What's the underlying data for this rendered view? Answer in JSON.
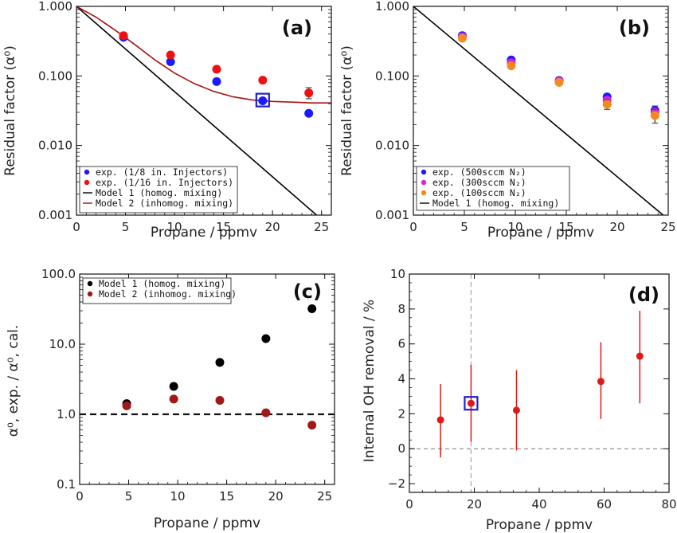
{
  "chart_data": [
    {
      "panel": "(a)",
      "type": "scatter",
      "xlabel": "Propane / ppmv",
      "ylabel": "Residual factor (α⁰)",
      "xlim": [
        0,
        26
      ],
      "ylim": [
        0.001,
        1.0
      ],
      "ylog": true,
      "xticks": [
        "0",
        "5",
        "10",
        "15",
        "20",
        "25"
      ],
      "yticks": [
        "0.001",
        "0.010",
        "0.100",
        "1.000"
      ],
      "series": [
        {
          "name": "exp. (1/8 in. Injectors)",
          "color": "#1a1aff",
          "kind": "points",
          "points": [
            [
              4.8,
              0.36
            ],
            [
              9.6,
              0.16
            ],
            [
              14.3,
              0.083
            ],
            [
              19.0,
              0.044
            ],
            [
              23.7,
              0.029
            ]
          ]
        },
        {
          "name": "exp. (1/16 in. Injectors)",
          "color": "#ee1111",
          "kind": "points",
          "points": [
            [
              4.8,
              0.38
            ],
            [
              9.6,
              0.2
            ],
            [
              14.3,
              0.125
            ],
            [
              19.0,
              0.087
            ],
            [
              23.7,
              0.057
            ]
          ],
          "errors": [
            [
              23.7,
              0.047,
              0.068
            ]
          ]
        },
        {
          "name": "Model 1 (homog. mixing)",
          "color": "#000000",
          "kind": "line",
          "points": [
            [
              0,
              1.0
            ],
            [
              24.5,
              0.001
            ]
          ]
        },
        {
          "name": "Model 2 (inhomog. mixing)",
          "color": "#aa1111",
          "kind": "line",
          "points": [
            [
              0,
              1.0
            ],
            [
              2,
              0.7
            ],
            [
              4,
              0.45
            ],
            [
              6,
              0.28
            ],
            [
              8,
              0.17
            ],
            [
              10,
              0.11
            ],
            [
              12,
              0.078
            ],
            [
              14,
              0.06
            ],
            [
              16,
              0.05
            ],
            [
              18,
              0.045
            ],
            [
              20,
              0.043
            ],
            [
              22,
              0.042
            ],
            [
              24,
              0.041
            ],
            [
              26,
              0.041
            ]
          ]
        }
      ],
      "highlight": [
        19.0,
        0.045
      ]
    },
    {
      "panel": "(b)",
      "type": "scatter",
      "xlabel": "Propane / ppmv",
      "ylabel": "Residual factor (α⁰)",
      "xlim": [
        0,
        25
      ],
      "ylim": [
        0.001,
        1.0
      ],
      "ylog": true,
      "xticks": [
        "0",
        "5",
        "10",
        "15",
        "20",
        "25"
      ],
      "yticks": [
        "0.001",
        "0.010",
        "0.100",
        "1.000"
      ],
      "series": [
        {
          "name": "exp. (500sccm N₂)",
          "color": "#1a1aff",
          "kind": "points",
          "points": [
            [
              4.8,
              0.38
            ],
            [
              9.6,
              0.17
            ],
            [
              14.3,
              0.086
            ],
            [
              19.0,
              0.05
            ],
            [
              23.7,
              0.032
            ]
          ],
          "errors": [
            [
              23.7,
              0.027,
              0.037
            ]
          ]
        },
        {
          "name": "exp. (300sccm N₂)",
          "color": "#dd22dd",
          "kind": "points",
          "points": [
            [
              4.8,
              0.365
            ],
            [
              9.6,
              0.155
            ],
            [
              14.3,
              0.084
            ],
            [
              19.0,
              0.045
            ],
            [
              23.7,
              0.03
            ]
          ]
        },
        {
          "name": "exp. (100sccm N₂)",
          "color": "#f58a1f",
          "kind": "points",
          "points": [
            [
              4.8,
              0.35
            ],
            [
              9.6,
              0.14
            ],
            [
              14.3,
              0.081
            ],
            [
              19.0,
              0.039
            ],
            [
              23.7,
              0.027
            ]
          ],
          "errors": [
            [
              19.0,
              0.033,
              0.046
            ],
            [
              23.7,
              0.021,
              0.033
            ]
          ]
        },
        {
          "name": "Model 1 (homog. mixing)",
          "color": "#000000",
          "kind": "line",
          "points": [
            [
              0,
              1.0
            ],
            [
              24.5,
              0.001
            ]
          ]
        }
      ]
    },
    {
      "panel": "(c)",
      "type": "scatter",
      "xlabel": "Propane / ppmv",
      "ylabel": "α⁰, exp. / α⁰, cal.",
      "xlim": [
        0,
        26
      ],
      "ylim": [
        0.1,
        100
      ],
      "ylog": true,
      "xticks": [
        "0",
        "5",
        "10",
        "15",
        "20",
        "25"
      ],
      "yticks": [
        "0.1",
        "1.0",
        "10.0",
        "100.0"
      ],
      "reference_line": 1.0,
      "series": [
        {
          "name": "Model 1 (homog. mixing)",
          "color": "#000000",
          "kind": "points",
          "points": [
            [
              4.8,
              1.42
            ],
            [
              9.6,
              2.5
            ],
            [
              14.3,
              5.5
            ],
            [
              19.0,
              12.0
            ],
            [
              23.7,
              32.0
            ]
          ]
        },
        {
          "name": "Model 2 (inhomog. mixing)",
          "color": "#a01818",
          "kind": "points",
          "points": [
            [
              4.8,
              1.32
            ],
            [
              9.6,
              1.65
            ],
            [
              14.3,
              1.58
            ],
            [
              19.0,
              1.05
            ],
            [
              23.7,
              0.7
            ]
          ]
        }
      ]
    },
    {
      "panel": "(d)",
      "type": "scatter",
      "xlabel": "Propane / ppmv",
      "ylabel": "Internal OH removal / %",
      "xlim": [
        0,
        80
      ],
      "ylim": [
        -2.5,
        10
      ],
      "ylog": false,
      "xticks": [
        "0",
        "20",
        "40",
        "60",
        "80"
      ],
      "yticks": [
        "−2",
        "0",
        "2",
        "4",
        "6",
        "8",
        "10"
      ],
      "reference_line": 0,
      "vertical_line": 19.0,
      "series": [
        {
          "name": "",
          "color": "#dd1a1a",
          "kind": "points",
          "points": [
            [
              9.6,
              1.65
            ],
            [
              19.0,
              2.6
            ],
            [
              33.0,
              2.2
            ],
            [
              59.0,
              3.85
            ],
            [
              71.0,
              5.3
            ]
          ],
          "errors": [
            [
              9.6,
              -0.5,
              3.7
            ],
            [
              19.0,
              0.4,
              4.8
            ],
            [
              33.0,
              -0.1,
              4.5
            ],
            [
              59.0,
              1.7,
              6.1
            ],
            [
              71.0,
              2.6,
              7.9
            ]
          ]
        }
      ],
      "highlight": [
        19.0,
        2.6
      ]
    }
  ]
}
